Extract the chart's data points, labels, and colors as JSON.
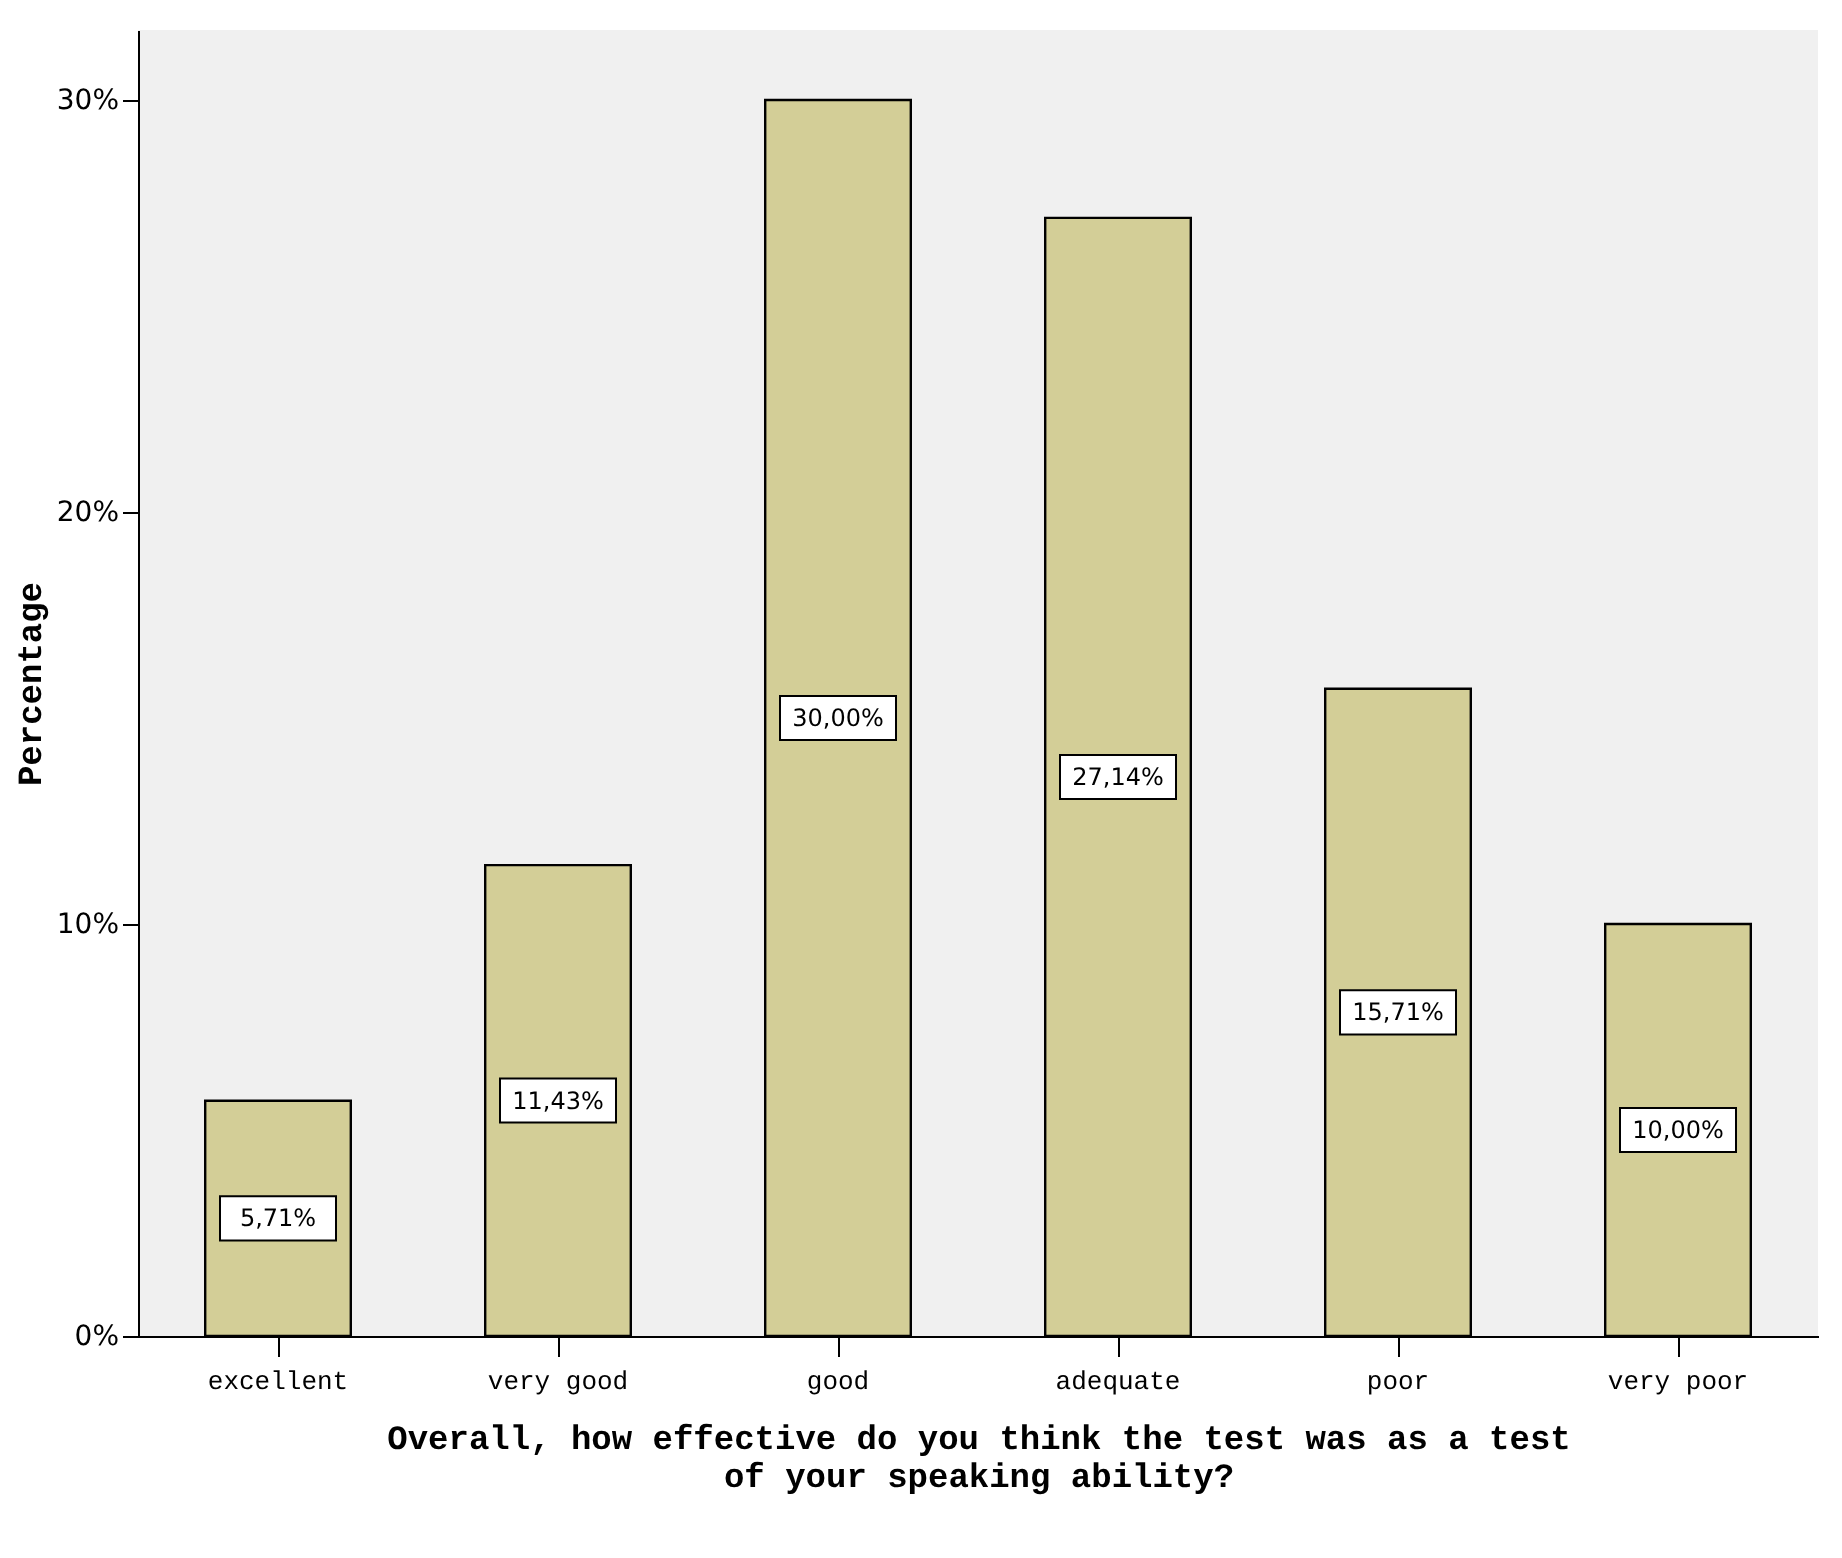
{
  "chart_data": {
    "type": "bar",
    "xlabel": "Overall, how effective do you think the test was as a test of your speaking ability?",
    "ylabel": "Percentage",
    "categories": [
      "excellent",
      "very good",
      "good",
      "adequate",
      "poor",
      "very poor"
    ],
    "values": [
      5.71,
      11.43,
      30.0,
      27.14,
      15.71,
      10.0
    ],
    "value_labels": [
      "5,71%",
      "11,43%",
      "30,00%",
      "27,14%",
      "15,71%",
      "10,00%"
    ],
    "color": "#d3ce97",
    "ylim": [
      0,
      31.7
    ],
    "yticks": [
      {
        "value": 0,
        "label": "0%"
      },
      {
        "value": 10,
        "label": "10%"
      },
      {
        "value": 20,
        "label": "20%"
      },
      {
        "value": 30,
        "label": "30%"
      }
    ],
    "grid": false
  }
}
